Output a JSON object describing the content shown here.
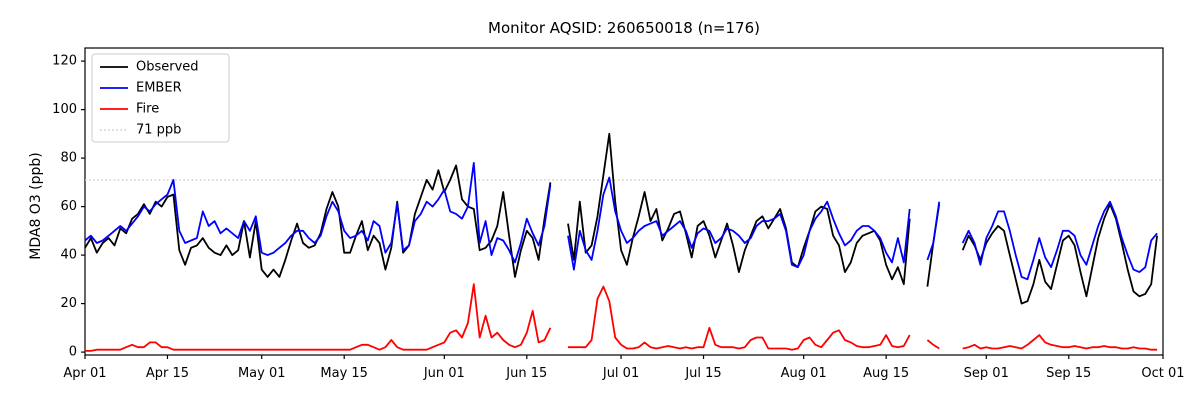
{
  "title": "Monitor AQSID: 260650018 (n=176)",
  "chart_data": {
    "type": "line",
    "title": "Monitor AQSID: 260650018 (n=176)",
    "xlabel": "",
    "ylabel": "MDA8 O3 (ppb)",
    "grid": false,
    "legend_position": "upper left",
    "legend": [
      "Observed",
      "EMBER",
      "Fire",
      "71 ppb"
    ],
    "colors": {
      "observed": "#000000",
      "ember": "#0000ff",
      "fire": "#ff0000",
      "threshold": "#c9c9c9"
    },
    "threshold": {
      "label": "71 ppb",
      "value": 71,
      "style": "dotted"
    },
    "ylim": [
      -1.2,
      125.4
    ],
    "y_ticks": [
      0,
      20,
      40,
      60,
      80,
      100,
      120
    ],
    "x_total_days": 183,
    "x_start": "Apr 01",
    "x_tick_labels": [
      "Apr 01",
      "Apr 15",
      "May 01",
      "May 15",
      "Jun 01",
      "Jun 15",
      "Jul 01",
      "Jul 15",
      "Aug 01",
      "Aug 15",
      "Sep 01",
      "Sep 15",
      "Oct 01"
    ],
    "x_tick_days": [
      0,
      14,
      30,
      44,
      61,
      75,
      91,
      105,
      122,
      136,
      153,
      167,
      183
    ],
    "series": [
      {
        "name": "Observed",
        "color": "#000000",
        "values": [
          43,
          47,
          41,
          45,
          47,
          44,
          51,
          49,
          55,
          57,
          61,
          57,
          62,
          60,
          64,
          65,
          42,
          36,
          43,
          44,
          47,
          43,
          41,
          40,
          44,
          40,
          42,
          54,
          39,
          54,
          34,
          31,
          34,
          31,
          38,
          46,
          53,
          45,
          43,
          44,
          49,
          59,
          66,
          60,
          41,
          41,
          48,
          54,
          42,
          48,
          45,
          34,
          43,
          62,
          41,
          44,
          57,
          64,
          71,
          67,
          75,
          66,
          71,
          77,
          63,
          60,
          59,
          42,
          43,
          46,
          52,
          66,
          48,
          31,
          42,
          50,
          47,
          38,
          55,
          70,
          null,
          null,
          53,
          38,
          62,
          41,
          44,
          56,
          73,
          90,
          62,
          42,
          36,
          47,
          56,
          66,
          54,
          59,
          46,
          51,
          57,
          58,
          49,
          39,
          52,
          54,
          48,
          39,
          46,
          53,
          44,
          33,
          42,
          48,
          54,
          56,
          51,
          55,
          59,
          51,
          37,
          35,
          43,
          50,
          58,
          60,
          59,
          48,
          44,
          33,
          37,
          45,
          48,
          49,
          50,
          46,
          36,
          30,
          35,
          28,
          55,
          null,
          null,
          27,
          45,
          61,
          null,
          null,
          null,
          42,
          48,
          44,
          38,
          45,
          49,
          52,
          50,
          40,
          30,
          20,
          21,
          28,
          38,
          29,
          26,
          36,
          46,
          48,
          44,
          33,
          23,
          35,
          47,
          55,
          61,
          55,
          45,
          34,
          25,
          23,
          24,
          28,
          48
        ]
      },
      {
        "name": "EMBER",
        "color": "#0000ff",
        "values": [
          46,
          48,
          45,
          46,
          48,
          50,
          52,
          50,
          53,
          56,
          60,
          58,
          61,
          63,
          65,
          71,
          50,
          45,
          46,
          47,
          58,
          52,
          54,
          49,
          51,
          49,
          47,
          54,
          50,
          56,
          41,
          40,
          41,
          43,
          45,
          48,
          50,
          50,
          47,
          45,
          48,
          56,
          62,
          58,
          50,
          47,
          48,
          50,
          46,
          54,
          52,
          41,
          45,
          61,
          42,
          44,
          54,
          57,
          62,
          60,
          63,
          67,
          58,
          57,
          55,
          60,
          78,
          45,
          54,
          40,
          47,
          46,
          42,
          37,
          45,
          55,
          49,
          44,
          52,
          69,
          null,
          null,
          48,
          34,
          50,
          42,
          38,
          50,
          65,
          72,
          58,
          50,
          45,
          47,
          50,
          52,
          53,
          54,
          48,
          50,
          52,
          54,
          50,
          43,
          49,
          51,
          50,
          45,
          47,
          51,
          50,
          48,
          45,
          47,
          52,
          54,
          54,
          55,
          57,
          50,
          36,
          35,
          40,
          50,
          55,
          58,
          62,
          55,
          49,
          44,
          46,
          50,
          52,
          52,
          50,
          47,
          41,
          37,
          47,
          37,
          59,
          null,
          null,
          38,
          45,
          62,
          null,
          null,
          null,
          45,
          50,
          45,
          36,
          47,
          52,
          58,
          58,
          50,
          40,
          31,
          30,
          38,
          47,
          39,
          35,
          42,
          50,
          50,
          48,
          40,
          36,
          44,
          52,
          58,
          62,
          56,
          47,
          40,
          34,
          33,
          35,
          46,
          49
        ]
      },
      {
        "name": "Fire",
        "color": "#ff0000",
        "values": [
          0.5,
          0.5,
          1,
          1,
          1,
          1,
          1,
          2,
          3,
          2,
          2,
          4,
          4,
          2,
          2,
          1,
          1,
          1,
          1,
          1,
          1,
          1,
          1,
          1,
          1,
          1,
          1,
          1,
          1,
          1,
          1,
          1,
          1,
          1,
          1,
          1,
          1,
          1,
          1,
          1,
          1,
          1,
          1,
          1,
          1,
          1,
          2,
          3,
          3,
          2,
          1,
          2,
          5,
          2,
          1,
          1,
          1,
          1,
          1,
          2,
          3,
          4,
          8,
          9,
          6,
          12,
          28,
          6,
          15,
          6,
          8,
          5,
          3,
          2,
          3,
          8,
          17,
          4,
          5,
          10,
          null,
          null,
          2,
          2,
          2,
          2,
          5,
          22,
          27,
          21,
          6,
          3,
          1.5,
          1.5,
          2,
          4,
          2,
          1.5,
          2,
          2.5,
          2,
          1.5,
          2,
          1.5,
          2,
          2,
          10,
          3,
          2,
          2,
          2,
          1.5,
          2,
          5,
          6,
          6,
          1.5,
          1.5,
          1.5,
          1.5,
          1,
          1.5,
          5,
          6,
          3,
          2,
          5,
          8,
          9,
          5,
          4,
          2.5,
          2,
          2,
          2.5,
          3,
          7,
          2.5,
          2,
          2.5,
          7,
          null,
          null,
          5,
          3,
          1.5,
          null,
          null,
          null,
          1.5,
          2,
          3,
          1.5,
          2,
          1.5,
          1.5,
          2,
          2.5,
          2,
          1.5,
          3,
          5,
          7,
          4,
          3,
          2.5,
          2,
          2,
          2.5,
          2,
          1.5,
          2,
          2,
          2.5,
          2,
          2,
          1.5,
          1.5,
          2,
          1.5,
          1.5,
          1,
          1
        ]
      }
    ]
  }
}
